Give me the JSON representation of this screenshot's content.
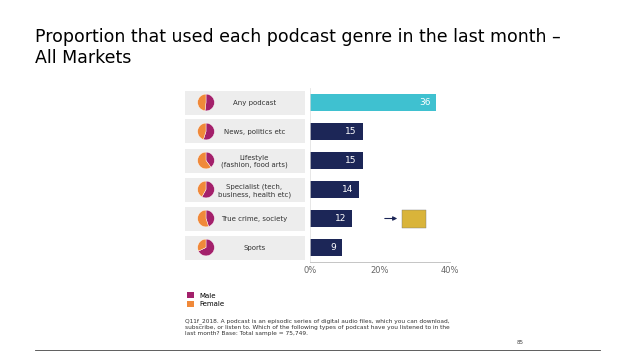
{
  "chart_data": {
    "type": "bar",
    "orientation": "horizontal",
    "title": "Proportion that used each podcast genre in the last month –\nAll Markets",
    "categories": [
      "Any podcast",
      "News, politics etc",
      "Lifestyle\n(fashion, food arts)",
      "Specialist (tech,\nbusiness, health etc)",
      "True crime, society",
      "Sports"
    ],
    "values": [
      36,
      15,
      15,
      14,
      12,
      9
    ],
    "colors": [
      "#3fc1d0",
      "#1c2657",
      "#1c2657",
      "#1c2657",
      "#1c2657",
      "#1c2657"
    ],
    "data_labels": true,
    "xlim": [
      0,
      40
    ],
    "xticks": [
      {
        "value": 0,
        "label": "0%"
      },
      {
        "value": 20,
        "label": "20%"
      },
      {
        "value": 40,
        "label": "40%"
      }
    ],
    "gender_split": {
      "type": "pie",
      "series": [
        {
          "name": "Male",
          "color": "#a3206b",
          "values": [
            52,
            55,
            40,
            58,
            45,
            68
          ]
        },
        {
          "name": "Female",
          "color": "#f0893a",
          "values": [
            48,
            45,
            60,
            42,
            55,
            32
          ]
        }
      ]
    },
    "legend": "lower left",
    "footnote": "Q11f_2018. A podcast is an episodic series of digital audio files, which you can download,\nsubscribe, or listen to. Which of the following types of podcast have you listened to in the\nlast month? Base: Total sample = 75,749.",
    "page_number": "85"
  }
}
